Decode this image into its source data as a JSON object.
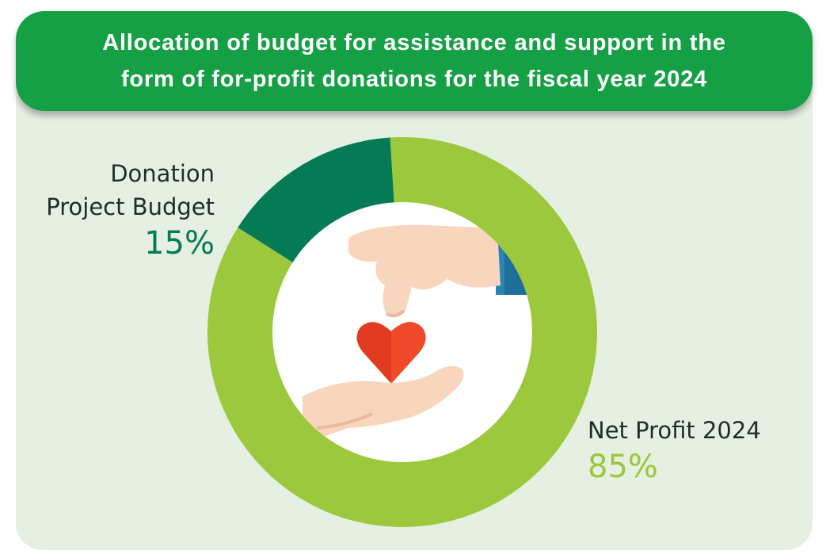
{
  "title_lines": [
    "Allocation of budget for assistance and support in the",
    "form of for-profit donations for the fiscal year 2024"
  ],
  "colors": {
    "banner": "#16a046",
    "panel": "#e5efe2",
    "net_profit": "#9bc83c",
    "donation": "#047a55"
  },
  "center_image": "hand-giving-heart-icon",
  "chart_data": {
    "type": "pie",
    "variant": "donut",
    "title": "Allocation of budget for assistance and support in the form of for-profit donations for the fiscal year 2024",
    "slices": [
      {
        "label_lines": [
          "Donation",
          "Project Budget"
        ],
        "value": 15,
        "value_label": "15%",
        "color": "#047a55"
      },
      {
        "label_lines": [
          "Net Profit 2024"
        ],
        "value": 85,
        "value_label": "85%",
        "color": "#9bc83c"
      }
    ]
  }
}
